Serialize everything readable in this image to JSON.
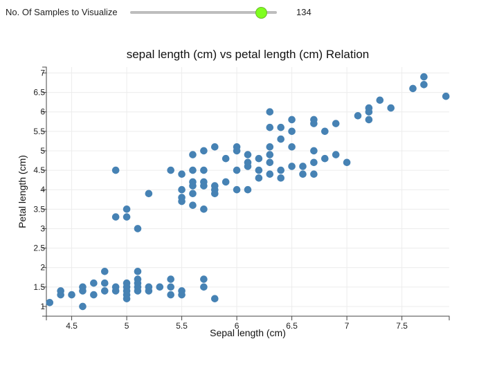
{
  "controls": {
    "samples_label": "No. Of Samples to Visualize",
    "samples_value": "134",
    "slider_min": 0,
    "slider_max": 150,
    "slider_value": 134,
    "thumb_color": "#7fff1f"
  },
  "chart_data": {
    "type": "scatter",
    "title": "sepal length (cm) vs petal length (cm) Relation",
    "xlabel": "Sepal length (cm)",
    "ylabel": "Petal length (cm)",
    "xlim": [
      4.27,
      7.93
    ],
    "ylim": [
      0.75,
      7.15
    ],
    "xticks": [
      4.5,
      5,
      5.5,
      6,
      6.5,
      7,
      7.5
    ],
    "xtick_labels": [
      "4.5",
      "5",
      "5.5",
      "6",
      "6.5",
      "7",
      "7.5"
    ],
    "yticks": [
      1,
      1.5,
      2,
      2.5,
      3,
      3.5,
      4,
      4.5,
      5,
      5.5,
      6,
      6.5,
      7
    ],
    "ytick_labels": [
      "1",
      "1.5",
      "2",
      "2.5",
      "3",
      "3.5",
      "4",
      "4.5",
      "5",
      "5.5",
      "6",
      "6.5",
      "7"
    ],
    "grid": true,
    "point_color": "#4682b4",
    "points": [
      [
        4.3,
        1.1
      ],
      [
        4.4,
        1.4
      ],
      [
        4.4,
        1.3
      ],
      [
        4.5,
        1.3
      ],
      [
        4.6,
        1.5
      ],
      [
        4.6,
        1.4
      ],
      [
        4.6,
        1.0
      ],
      [
        4.7,
        1.6
      ],
      [
        4.7,
        1.3
      ],
      [
        4.8,
        1.9
      ],
      [
        4.8,
        1.6
      ],
      [
        4.8,
        1.4
      ],
      [
        4.9,
        1.5
      ],
      [
        4.9,
        1.4
      ],
      [
        5.0,
        1.6
      ],
      [
        5.0,
        1.5
      ],
      [
        5.0,
        1.4
      ],
      [
        5.0,
        1.3
      ],
      [
        5.0,
        1.2
      ],
      [
        5.1,
        1.9
      ],
      [
        5.1,
        1.7
      ],
      [
        5.1,
        1.6
      ],
      [
        5.1,
        1.5
      ],
      [
        5.1,
        1.4
      ],
      [
        5.2,
        1.5
      ],
      [
        5.2,
        1.4
      ],
      [
        5.3,
        1.5
      ],
      [
        5.4,
        1.7
      ],
      [
        5.4,
        1.5
      ],
      [
        5.4,
        1.3
      ],
      [
        5.5,
        1.4
      ],
      [
        5.5,
        1.3
      ],
      [
        5.7,
        1.7
      ],
      [
        5.7,
        1.5
      ],
      [
        5.8,
        1.2
      ],
      [
        4.9,
        4.5
      ],
      [
        4.9,
        3.3
      ],
      [
        5.0,
        3.5
      ],
      [
        5.0,
        3.3
      ],
      [
        5.1,
        3.0
      ],
      [
        5.2,
        3.9
      ],
      [
        5.4,
        4.5
      ],
      [
        5.5,
        4.4
      ],
      [
        5.5,
        4.0
      ],
      [
        5.5,
        3.8
      ],
      [
        5.5,
        3.7
      ],
      [
        5.6,
        4.9
      ],
      [
        5.6,
        4.5
      ],
      [
        5.6,
        4.2
      ],
      [
        5.6,
        4.1
      ],
      [
        5.6,
        3.9
      ],
      [
        5.6,
        3.6
      ],
      [
        5.7,
        5.0
      ],
      [
        5.7,
        4.5
      ],
      [
        5.7,
        4.2
      ],
      [
        5.7,
        4.1
      ],
      [
        5.7,
        3.5
      ],
      [
        5.8,
        5.1
      ],
      [
        5.8,
        4.1
      ],
      [
        5.8,
        4.0
      ],
      [
        5.8,
        3.9
      ],
      [
        5.9,
        4.8
      ],
      [
        5.9,
        4.2
      ],
      [
        6.0,
        5.1
      ],
      [
        6.0,
        5.0
      ],
      [
        6.0,
        4.5
      ],
      [
        6.0,
        4.0
      ],
      [
        6.1,
        4.9
      ],
      [
        6.1,
        4.7
      ],
      [
        6.1,
        4.6
      ],
      [
        6.1,
        4.0
      ],
      [
        6.2,
        4.8
      ],
      [
        6.2,
        4.5
      ],
      [
        6.2,
        4.3
      ],
      [
        6.3,
        6.0
      ],
      [
        6.3,
        5.6
      ],
      [
        6.3,
        5.1
      ],
      [
        6.3,
        4.9
      ],
      [
        6.3,
        4.7
      ],
      [
        6.3,
        4.4
      ],
      [
        6.4,
        5.6
      ],
      [
        6.4,
        5.3
      ],
      [
        6.4,
        4.5
      ],
      [
        6.4,
        4.3
      ],
      [
        6.5,
        5.8
      ],
      [
        6.5,
        5.5
      ],
      [
        6.5,
        5.1
      ],
      [
        6.5,
        4.6
      ],
      [
        6.6,
        4.6
      ],
      [
        6.6,
        4.4
      ],
      [
        6.7,
        5.8
      ],
      [
        6.7,
        5.7
      ],
      [
        6.7,
        5.0
      ],
      [
        6.7,
        4.7
      ],
      [
        6.7,
        4.4
      ],
      [
        6.8,
        5.5
      ],
      [
        6.8,
        4.8
      ],
      [
        6.9,
        5.7
      ],
      [
        6.9,
        4.9
      ],
      [
        7.0,
        4.7
      ],
      [
        7.1,
        5.9
      ],
      [
        7.2,
        6.1
      ],
      [
        7.2,
        6.0
      ],
      [
        7.2,
        5.8
      ],
      [
        7.3,
        6.3
      ],
      [
        7.4,
        6.1
      ],
      [
        7.6,
        6.6
      ],
      [
        7.7,
        6.9
      ],
      [
        7.7,
        6.7
      ],
      [
        7.9,
        6.4
      ]
    ]
  }
}
